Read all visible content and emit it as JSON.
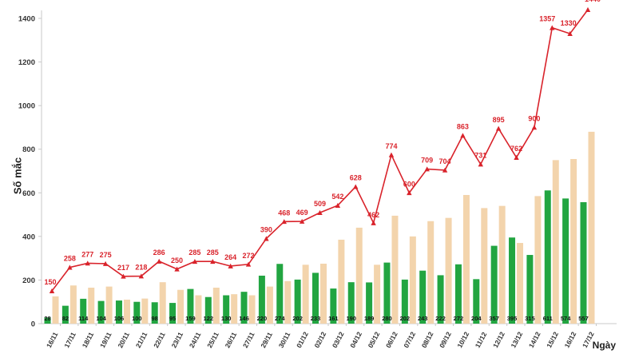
{
  "chart_data": {
    "type": "bar",
    "title": "",
    "xlabel": "Ngày",
    "ylabel": "Số mắc",
    "ylim": [
      0,
      1400
    ],
    "y_ticks": [
      0,
      200,
      400,
      600,
      800,
      1000,
      1200,
      1400
    ],
    "grid": false,
    "categories": [
      "16/11",
      "17/11",
      "18/11",
      "19/11",
      "20/11",
      "21/11",
      "22/11",
      "23/11",
      "24/11",
      "25/11",
      "26/11",
      "27/11",
      "29/11",
      "30/11",
      "01/12",
      "02/12",
      "03/12",
      "04/12",
      "05/12",
      "06/12",
      "07/12",
      "08/12",
      "09/12",
      "10/12",
      "11/12",
      "12/12",
      "13/12",
      "14/12",
      "15/12",
      "16/12",
      "17/12"
    ],
    "series": [
      {
        "name": "",
        "type": "bar",
        "color": "#22a541",
        "values": [
          28,
          82,
          114,
          104,
          106,
          100,
          98,
          95,
          159,
          122,
          130,
          146,
          220,
          274,
          202,
          233,
          161,
          190,
          189,
          280,
          202,
          243,
          222,
          272,
          204,
          357,
          395,
          315,
          611,
          574,
          557
        ]
      },
      {
        "name": "",
        "type": "bar",
        "color": "#f3d4ac",
        "values": [
          125,
          175,
          165,
          170,
          110,
          115,
          190,
          155,
          130,
          165,
          135,
          130,
          170,
          195,
          270,
          275,
          385,
          440,
          270,
          495,
          400,
          470,
          485,
          590,
          530,
          540,
          370,
          585,
          750,
          755,
          880
        ]
      },
      {
        "name": "",
        "type": "line",
        "color": "#d9232b",
        "values": [
          150,
          258,
          277,
          275,
          217,
          218,
          286,
          250,
          285,
          285,
          264,
          272,
          390,
          468,
          469,
          509,
          542,
          628,
          462,
          774,
          600,
          709,
          704,
          863,
          731,
          895,
          762,
          900,
          1357,
          1330,
          1440
        ]
      }
    ]
  }
}
